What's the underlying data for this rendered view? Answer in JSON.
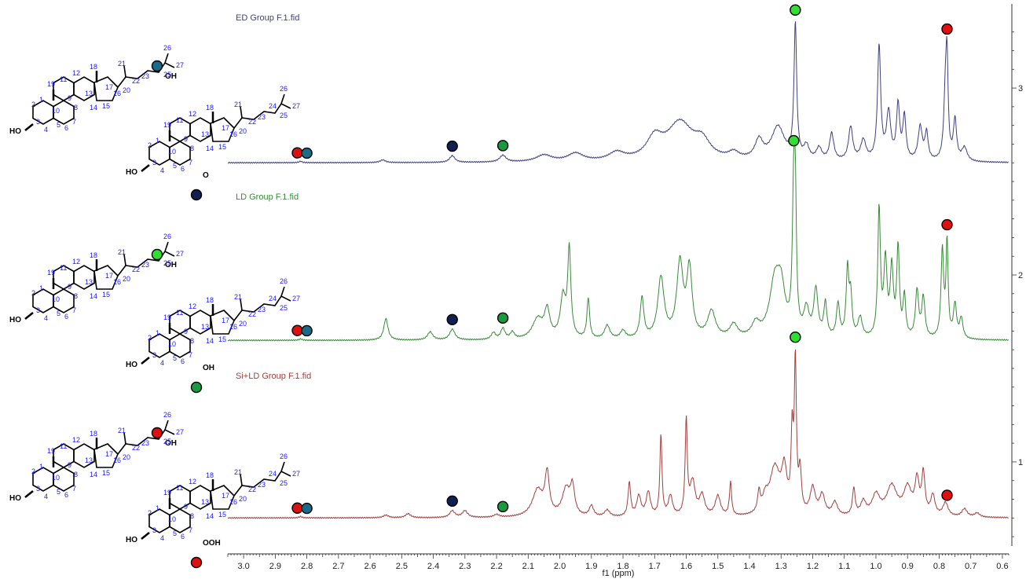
{
  "chart_data": {
    "type": "line",
    "xlabel": "f1 (ppm)",
    "xlim": [
      3.05,
      0.58
    ],
    "x_reversed": true,
    "x_ticks": [
      "3.0",
      "2.9",
      "2.8",
      "2.7",
      "2.6",
      "2.5",
      "2.4",
      "2.3",
      "2.2",
      "2.1",
      "2.0",
      "1.9",
      "1.8",
      "1.7",
      "1.6",
      "1.5",
      "1.4",
      "1.3",
      "1.2",
      "1.1",
      "1.0",
      "0.9",
      "0.8",
      "0.7",
      "0.6"
    ],
    "ylim": [
      0.55,
      3.45
    ],
    "y_ticks": [
      "1",
      "2",
      "3"
    ],
    "grid": false,
    "series": [
      {
        "name": "ED Group F.1.fid",
        "color": "#404080",
        "baseline": 2.6,
        "scale": 0.72,
        "peaks": [
          [
            2.82,
            0.01,
            0.006
          ],
          [
            2.56,
            0.02,
            0.01
          ],
          [
            2.34,
            0.05,
            0.01
          ],
          [
            2.18,
            0.05,
            0.012
          ],
          [
            2.05,
            0.05,
            0.03
          ],
          [
            1.95,
            0.06,
            0.03
          ],
          [
            1.82,
            0.06,
            0.03
          ],
          [
            1.7,
            0.15,
            0.03
          ],
          [
            1.62,
            0.28,
            0.05
          ],
          [
            1.55,
            0.12,
            0.03
          ],
          [
            1.45,
            0.05,
            0.02
          ],
          [
            1.37,
            0.14,
            0.015
          ],
          [
            1.31,
            0.25,
            0.025
          ],
          [
            1.255,
            1.0,
            0.005
          ],
          [
            1.22,
            0.1,
            0.01
          ],
          [
            1.18,
            0.09,
            0.01
          ],
          [
            1.14,
            0.2,
            0.008
          ],
          [
            1.08,
            0.25,
            0.008
          ],
          [
            1.04,
            0.15,
            0.01
          ],
          [
            0.99,
            0.85,
            0.006
          ],
          [
            0.96,
            0.35,
            0.008
          ],
          [
            0.93,
            0.4,
            0.006
          ],
          [
            0.91,
            0.32,
            0.006
          ],
          [
            0.86,
            0.25,
            0.008
          ],
          [
            0.84,
            0.2,
            0.006
          ],
          [
            0.78,
            0.5,
            0.006
          ],
          [
            0.775,
            0.6,
            0.004
          ],
          [
            0.75,
            0.3,
            0.006
          ],
          [
            0.72,
            0.1,
            0.01
          ]
        ]
      },
      {
        "name": "LD Group F.1.fid",
        "color": "#3a8a3a",
        "baseline": 1.65,
        "scale": 0.72,
        "peaks": [
          [
            2.82,
            0.01,
            0.006
          ],
          [
            2.55,
            0.16,
            0.008
          ],
          [
            2.41,
            0.06,
            0.01
          ],
          [
            2.34,
            0.08,
            0.01
          ],
          [
            2.21,
            0.05,
            0.008
          ],
          [
            2.18,
            0.08,
            0.008
          ],
          [
            2.15,
            0.05,
            0.008
          ],
          [
            2.07,
            0.15,
            0.02
          ],
          [
            2.04,
            0.2,
            0.01
          ],
          [
            1.99,
            0.3,
            0.01
          ],
          [
            1.97,
            0.65,
            0.006
          ],
          [
            1.91,
            0.3,
            0.005
          ],
          [
            1.85,
            0.1,
            0.01
          ],
          [
            1.8,
            0.06,
            0.01
          ],
          [
            1.74,
            0.3,
            0.007
          ],
          [
            1.68,
            0.45,
            0.012
          ],
          [
            1.62,
            0.55,
            0.012
          ],
          [
            1.59,
            0.5,
            0.01
          ],
          [
            1.52,
            0.2,
            0.015
          ],
          [
            1.45,
            0.1,
            0.015
          ],
          [
            1.38,
            0.1,
            0.015
          ],
          [
            1.32,
            0.4,
            0.02
          ],
          [
            1.3,
            0.3,
            0.015
          ],
          [
            1.26,
            1.0,
            0.005
          ],
          [
            1.255,
            0.8,
            0.004
          ],
          [
            1.22,
            0.2,
            0.01
          ],
          [
            1.19,
            0.35,
            0.008
          ],
          [
            1.16,
            0.25,
            0.006
          ],
          [
            1.12,
            0.25,
            0.006
          ],
          [
            1.09,
            0.5,
            0.005
          ],
          [
            1.08,
            0.3,
            0.005
          ],
          [
            1.05,
            0.15,
            0.008
          ],
          [
            0.99,
            0.95,
            0.005
          ],
          [
            0.97,
            0.55,
            0.006
          ],
          [
            0.95,
            0.5,
            0.006
          ],
          [
            0.93,
            0.65,
            0.005
          ],
          [
            0.91,
            0.3,
            0.005
          ],
          [
            0.87,
            0.35,
            0.006
          ],
          [
            0.85,
            0.3,
            0.006
          ],
          [
            0.79,
            0.65,
            0.005
          ],
          [
            0.775,
            0.7,
            0.004
          ],
          [
            0.75,
            0.25,
            0.006
          ],
          [
            0.73,
            0.15,
            0.006
          ]
        ]
      },
      {
        "name": "Si+LD Group F.1.fid",
        "color": "#a04040",
        "baseline": 0.7,
        "scale": 0.72,
        "peaks": [
          [
            2.82,
            0.01,
            0.006
          ],
          [
            2.55,
            0.02,
            0.01
          ],
          [
            2.48,
            0.03,
            0.01
          ],
          [
            2.34,
            0.05,
            0.01
          ],
          [
            2.3,
            0.05,
            0.01
          ],
          [
            2.2,
            0.02,
            0.01
          ],
          [
            2.07,
            0.2,
            0.02
          ],
          [
            2.04,
            0.3,
            0.008
          ],
          [
            1.98,
            0.2,
            0.015
          ],
          [
            1.96,
            0.2,
            0.008
          ],
          [
            1.9,
            0.08,
            0.008
          ],
          [
            1.85,
            0.05,
            0.01
          ],
          [
            1.78,
            0.25,
            0.005
          ],
          [
            1.75,
            0.15,
            0.008
          ],
          [
            1.72,
            0.18,
            0.008
          ],
          [
            1.68,
            0.6,
            0.004
          ],
          [
            1.65,
            0.15,
            0.008
          ],
          [
            1.6,
            0.7,
            0.004
          ],
          [
            1.58,
            0.25,
            0.01
          ],
          [
            1.55,
            0.15,
            0.01
          ],
          [
            1.5,
            0.15,
            0.01
          ],
          [
            1.46,
            0.25,
            0.004
          ],
          [
            1.37,
            0.15,
            0.005
          ],
          [
            1.35,
            0.1,
            0.01
          ],
          [
            1.32,
            0.35,
            0.02
          ],
          [
            1.29,
            0.3,
            0.01
          ],
          [
            1.265,
            0.55,
            0.004
          ],
          [
            1.255,
            1.1,
            0.004
          ],
          [
            1.24,
            0.3,
            0.005
          ],
          [
            1.2,
            0.2,
            0.01
          ],
          [
            1.17,
            0.15,
            0.01
          ],
          [
            1.13,
            0.1,
            0.01
          ],
          [
            1.07,
            0.2,
            0.005
          ],
          [
            1.04,
            0.1,
            0.01
          ],
          [
            1.0,
            0.15,
            0.015
          ],
          [
            0.95,
            0.22,
            0.02
          ],
          [
            0.9,
            0.2,
            0.015
          ],
          [
            0.87,
            0.25,
            0.008
          ],
          [
            0.85,
            0.3,
            0.006
          ],
          [
            0.82,
            0.15,
            0.008
          ],
          [
            0.78,
            0.1,
            0.01
          ],
          [
            0.72,
            0.06,
            0.01
          ],
          [
            0.68,
            0.03,
            0.01
          ]
        ]
      }
    ],
    "markers": [
      {
        "series": "ED Group F.1.fid",
        "ppm": 2.83,
        "color": "#e01010"
      },
      {
        "series": "ED Group F.1.fid",
        "ppm": 2.8,
        "color": "#1a6a8a"
      },
      {
        "series": "ED Group F.1.fid",
        "ppm": 2.34,
        "color": "#102050"
      },
      {
        "series": "ED Group F.1.fid",
        "ppm": 2.18,
        "color": "#1a9a40"
      },
      {
        "series": "ED Group F.1.fid",
        "ppm": 1.255,
        "color": "#30e030"
      },
      {
        "series": "ED Group F.1.fid",
        "ppm": 0.775,
        "color": "#e01010"
      },
      {
        "series": "LD Group F.1.fid",
        "ppm": 2.83,
        "color": "#e01010"
      },
      {
        "series": "LD Group F.1.fid",
        "ppm": 2.8,
        "color": "#1a6a8a"
      },
      {
        "series": "LD Group F.1.fid",
        "ppm": 2.34,
        "color": "#102050"
      },
      {
        "series": "LD Group F.1.fid",
        "ppm": 2.18,
        "color": "#1a9a40"
      },
      {
        "series": "LD Group F.1.fid",
        "ppm": 1.26,
        "color": "#30e030"
      },
      {
        "series": "LD Group F.1.fid",
        "ppm": 0.775,
        "color": "#e01010"
      },
      {
        "series": "Si+LD Group F.1.fid",
        "ppm": 2.83,
        "color": "#e01010"
      },
      {
        "series": "Si+LD Group F.1.fid",
        "ppm": 2.8,
        "color": "#1a6a8a"
      },
      {
        "series": "Si+LD Group F.1.fid",
        "ppm": 2.34,
        "color": "#102050"
      },
      {
        "series": "Si+LD Group F.1.fid",
        "ppm": 2.18,
        "color": "#1a9a40"
      },
      {
        "series": "Si+LD Group F.1.fid",
        "ppm": 1.255,
        "color": "#30e030"
      },
      {
        "series": "Si+LD Group F.1.fid",
        "ppm": 0.775,
        "color": "#e01010"
      }
    ]
  },
  "structures": [
    {
      "id": "ed-1",
      "substituent_labels": [
        "HO",
        "OH"
      ],
      "numbers": [
        "1",
        "2",
        "3",
        "4",
        "5",
        "6",
        "7",
        "8",
        "9",
        "10",
        "11",
        "12",
        "13",
        "14",
        "15",
        "16",
        "17",
        "18",
        "19",
        "20",
        "21",
        "22",
        "23",
        "24",
        "25",
        "26",
        "27"
      ],
      "marker_color": "#1a6a8a"
    },
    {
      "id": "ed-2",
      "substituent_labels": [
        "HO",
        "O"
      ],
      "numbers": [
        "1",
        "2",
        "3",
        "4",
        "5",
        "6",
        "7",
        "8",
        "9",
        "10",
        "11",
        "12",
        "13",
        "14",
        "15",
        "16",
        "17",
        "18",
        "19",
        "20",
        "21",
        "22",
        "23",
        "24",
        "25",
        "26",
        "27"
      ],
      "marker_color": "#102050"
    },
    {
      "id": "ld-1",
      "substituent_labels": [
        "HO",
        "OH"
      ],
      "numbers": [
        "1",
        "2",
        "3",
        "4",
        "5",
        "6",
        "7",
        "8",
        "9",
        "10",
        "11",
        "12",
        "13",
        "14",
        "15",
        "16",
        "17",
        "18",
        "19",
        "20",
        "21",
        "22",
        "23",
        "24",
        "25",
        "26",
        "27"
      ],
      "marker_color": "#30e030"
    },
    {
      "id": "ld-2",
      "substituent_labels": [
        "HO",
        "OH"
      ],
      "numbers": [
        "1",
        "2",
        "3",
        "4",
        "5",
        "6",
        "7",
        "8",
        "9",
        "10",
        "11",
        "12",
        "13",
        "14",
        "15",
        "16",
        "17",
        "18",
        "19",
        "20",
        "21",
        "22",
        "23",
        "24",
        "25",
        "26",
        "27"
      ],
      "marker_color": "#1a9a40"
    },
    {
      "id": "si-1",
      "substituent_labels": [
        "HO",
        "OH"
      ],
      "numbers": [
        "1",
        "2",
        "3",
        "4",
        "5",
        "6",
        "7",
        "8",
        "9",
        "10",
        "11",
        "12",
        "13",
        "14",
        "15",
        "16",
        "17",
        "18",
        "19",
        "20",
        "21",
        "22",
        "23",
        "24",
        "25",
        "26",
        "27"
      ],
      "marker_color": "#e01010"
    },
    {
      "id": "si-2",
      "substituent_labels": [
        "HO",
        "OOH"
      ],
      "numbers": [
        "1",
        "2",
        "3",
        "4",
        "5",
        "6",
        "7",
        "8",
        "9",
        "10",
        "11",
        "12",
        "13",
        "14",
        "15",
        "16",
        "17",
        "18",
        "19",
        "20",
        "21",
        "22",
        "23",
        "24",
        "25",
        "26",
        "27"
      ],
      "marker_color": "#e01010"
    }
  ]
}
